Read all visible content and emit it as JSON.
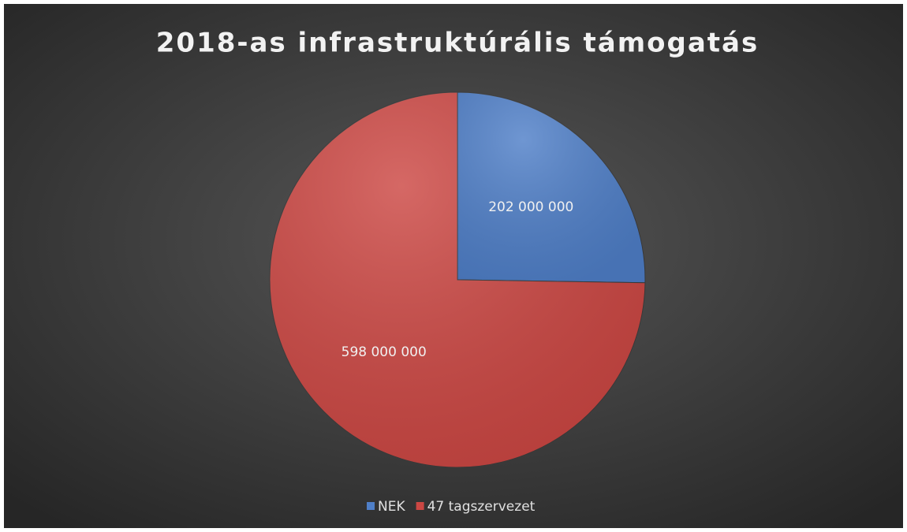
{
  "chart_data": {
    "type": "pie",
    "title": "2018-as infrastruktúrális támogatás",
    "categories": [
      "NEK",
      "47 tagszervezet"
    ],
    "values": [
      202000000,
      598000000
    ],
    "value_labels": [
      "202 000 000",
      "598 000 000"
    ],
    "colors": [
      "#4f7fc8",
      "#cc4743"
    ],
    "legend": "bottom"
  }
}
